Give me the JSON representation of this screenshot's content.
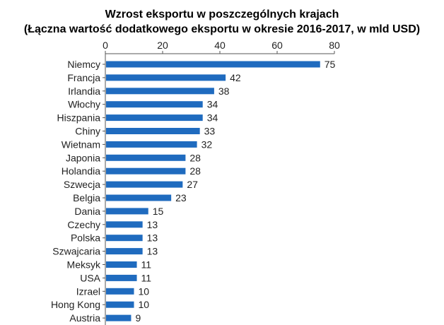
{
  "chart_data": {
    "type": "bar",
    "orientation": "horizontal",
    "title": "Wzrost eksportu w poszczególnych krajach",
    "subtitle": "(Łączna wartość dodatkowego eksportu w okresie 2016-2017, w mld USD)",
    "categories": [
      "Niemcy",
      "Francja",
      "Irlandia",
      "Włochy",
      "Hiszpania",
      "Chiny",
      "Wietnam",
      "Japonia",
      "Holandia",
      "Szwecja",
      "Belgia",
      "Dania",
      "Czechy",
      "Polska",
      "Szwajcaria",
      "Meksyk",
      "USA",
      "Izrael",
      "Hong Kong",
      "Austria"
    ],
    "values": [
      75,
      42,
      38,
      34,
      34,
      33,
      32,
      28,
      28,
      27,
      23,
      15,
      13,
      13,
      13,
      11,
      11,
      10,
      10,
      9
    ],
    "xlim": [
      0,
      80
    ],
    "xticks": [
      0,
      20,
      40,
      60,
      80
    ],
    "xaxis_position": "top",
    "grid": false,
    "legend": "none",
    "bar_color": "#1f6bbf"
  }
}
